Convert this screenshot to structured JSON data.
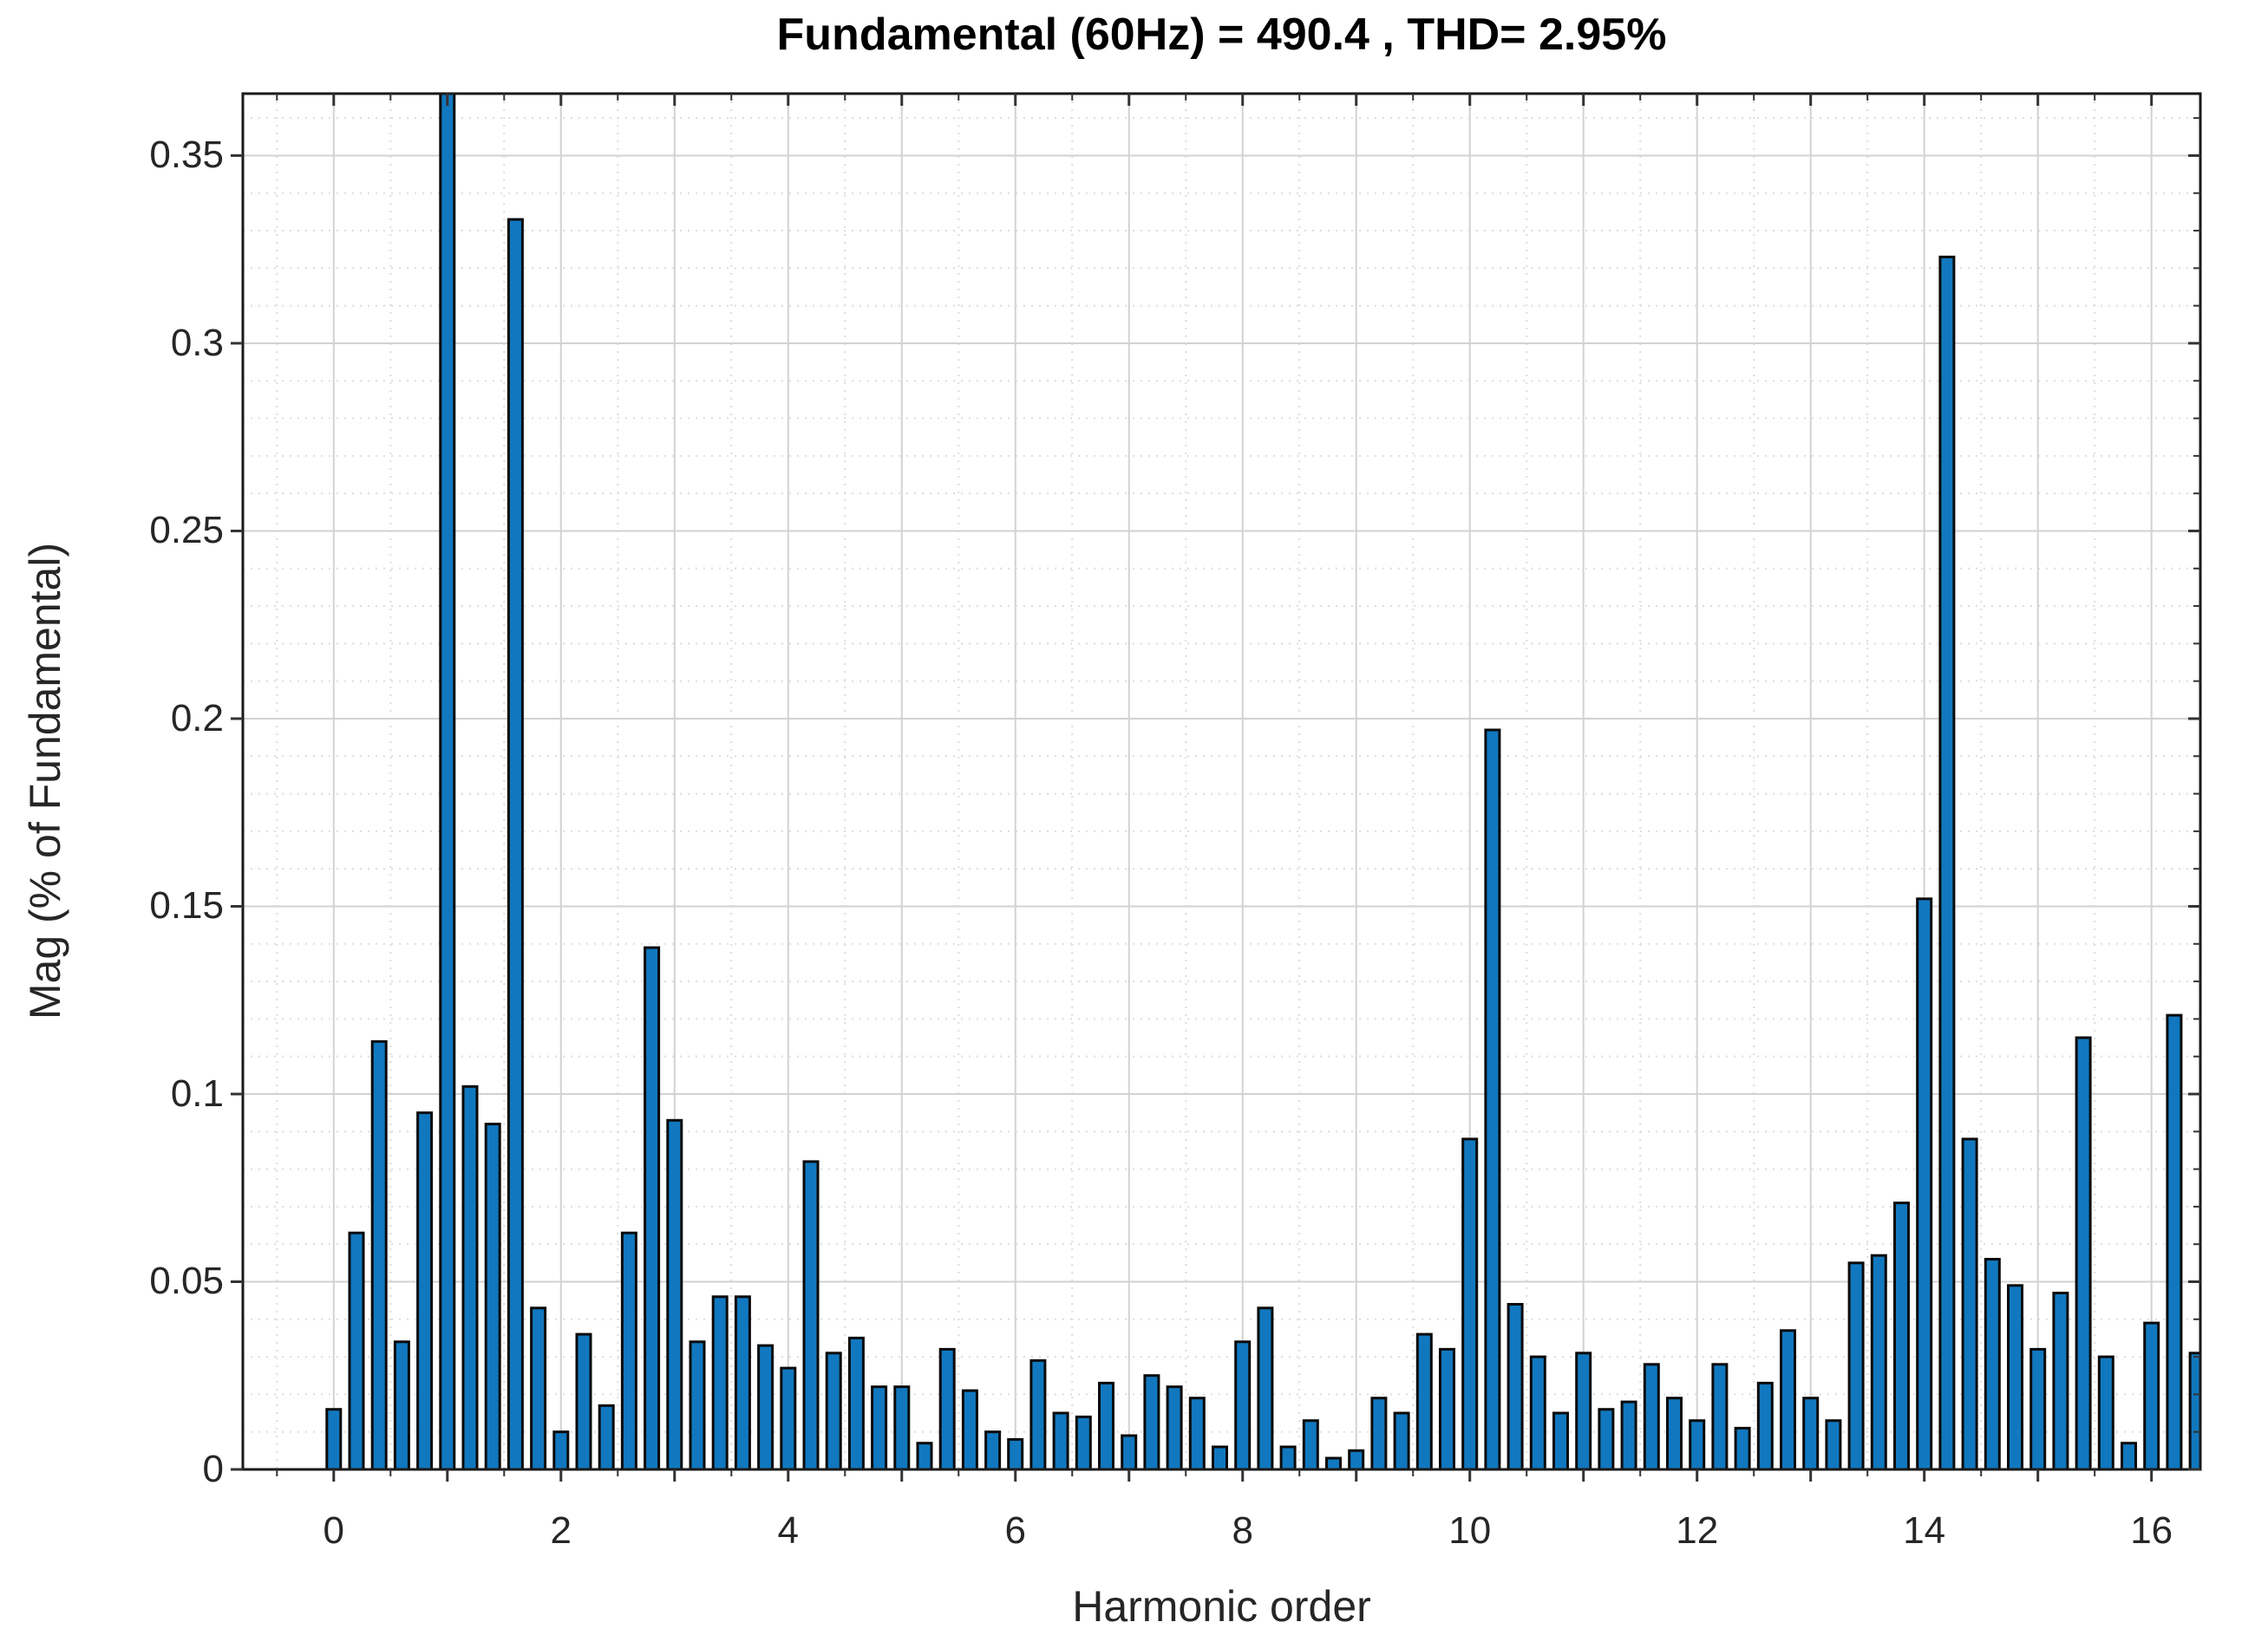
{
  "figure": {
    "title": "Fundamental (60Hz) = 490.4 , THD= 2.95%",
    "xlabel": "Harmonic order",
    "ylabel": "Mag (% of Fundamental)"
  },
  "chart_data": {
    "type": "bar",
    "title": "Fundamental (60Hz) = 490.4 , THD= 2.95%",
    "xlabel": "Harmonic order",
    "ylabel": "Mag (% of Fundamental)",
    "x_start": 0,
    "x_step": 0.2,
    "values": [
      0.016,
      0.063,
      0.114,
      0.034,
      0.095,
      100,
      0.102,
      0.092,
      0.333,
      0.043,
      0.01,
      0.036,
      0.017,
      0.063,
      0.139,
      0.093,
      0.034,
      0.046,
      0.046,
      0.033,
      0.027,
      0.082,
      0.031,
      0.035,
      0.022,
      0.022,
      0.007,
      0.032,
      0.021,
      0.01,
      0.008,
      0.029,
      0.015,
      0.014,
      0.023,
      0.009,
      0.025,
      0.022,
      0.019,
      0.006,
      0.034,
      0.043,
      0.006,
      0.013,
      0.003,
      0.005,
      0.019,
      0.015,
      0.036,
      0.032,
      0.088,
      0.197,
      0.044,
      0.03,
      0.015,
      0.031,
      0.016,
      0.018,
      0.028,
      0.019,
      0.013,
      0.028,
      0.011,
      0.023,
      0.037,
      0.019,
      0.013,
      0.055,
      0.057,
      0.071,
      0.152,
      0.323,
      0.088,
      0.056,
      0.049,
      0.032,
      0.047,
      0.115,
      0.03,
      0.007,
      0.039,
      0.121,
      0.031
    ],
    "fundamental_index": 5,
    "fundamental_clipped": true,
    "xlim": [
      -0.8,
      16.43
    ],
    "ylim": [
      0,
      0.3665
    ],
    "xticks": [
      0,
      2,
      4,
      6,
      8,
      10,
      12,
      14,
      16
    ],
    "xtick_labels": [
      "0",
      "2",
      "4",
      "6",
      "8",
      "10",
      "12",
      "14",
      "16"
    ],
    "yticks": [
      0,
      0.05,
      0.1,
      0.15,
      0.2,
      0.25,
      0.3,
      0.35
    ],
    "ytick_labels": [
      "0",
      "0.05",
      "0.1",
      "0.15",
      "0.2",
      "0.25",
      "0.3",
      "0.35"
    ],
    "x_major_grid_step": 1,
    "x_minor_grid_step": 0.5,
    "y_minor_grid_step": 0.01,
    "grid": true,
    "legend": null,
    "colors": {
      "bar_fill": "#1178bf",
      "bar_edge": "#0a0a0a",
      "grid_major": "#d2d2d2",
      "grid_minor": "#dddddd",
      "box": "#1a1a1a",
      "tick_color": "#333333",
      "tick_label_color": "#262626",
      "background": "#ffffff"
    }
  }
}
